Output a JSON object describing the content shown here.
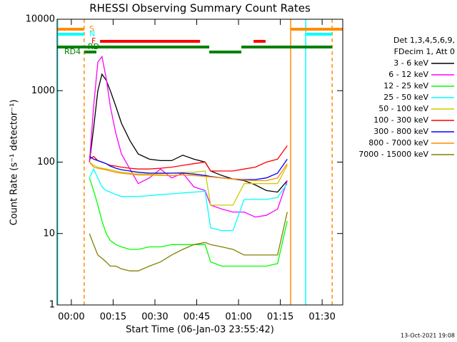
{
  "chart_data": {
    "type": "line",
    "title": "RHESSI Observing Summary Count Rates",
    "xlabel": "Start Time (06-Jan-03 23:55:42)",
    "ylabel": "Count Rate (s⁻¹ detector⁻¹)",
    "ylog": true,
    "xlim": [
      -5.1,
      97.4
    ],
    "ylim": [
      1,
      10000
    ],
    "xticks": [
      {
        "value": 0,
        "label": "00:00"
      },
      {
        "value": 15,
        "label": "00:15"
      },
      {
        "value": 30,
        "label": "00:30"
      },
      {
        "value": 45,
        "label": "00:45"
      },
      {
        "value": 60,
        "label": "01:00"
      },
      {
        "value": 75,
        "label": "01:15"
      },
      {
        "value": 90,
        "label": "01:30"
      }
    ],
    "yticks": [
      1,
      10,
      100,
      1000,
      10000
    ],
    "legend_header": [
      "Det 1,3,4,5,6,9,",
      "FDecim 1, Att 0"
    ],
    "timestamp": "13-Oct-2021 19:08",
    "x": [
      6.5,
      8,
      9.5,
      11,
      12.5,
      14,
      16,
      18,
      21,
      24,
      28,
      32,
      36,
      40,
      44,
      48,
      50,
      54,
      58,
      62,
      66,
      70,
      74,
      77.5
    ],
    "series": [
      {
        "name": "3 - 6 keV",
        "color": "#000000",
        "values": [
          100,
          300,
          1000,
          1700,
          1400,
          1000,
          600,
          350,
          200,
          130,
          110,
          105,
          105,
          125,
          110,
          100,
          75,
          65,
          58,
          55,
          48,
          40,
          38,
          55
        ]
      },
      {
        "name": "6 - 12 keV",
        "color": "#ff00ff",
        "values": [
          100,
          600,
          2500,
          3000,
          1500,
          600,
          250,
          130,
          80,
          50,
          60,
          80,
          60,
          70,
          45,
          40,
          25,
          22,
          20,
          20,
          17,
          18,
          22,
          55
        ]
      },
      {
        "name": "12 - 25 keV",
        "color": "#00ff00",
        "values": [
          60,
          40,
          25,
          15,
          10,
          8,
          7,
          6.5,
          6,
          6,
          6.5,
          6.5,
          7,
          7,
          7,
          7,
          4,
          3.5,
          3.5,
          3.5,
          3.5,
          3.5,
          3.8,
          15
        ]
      },
      {
        "name": "25 - 50 keV",
        "color": "#00ffff",
        "values": [
          60,
          80,
          60,
          45,
          40,
          38,
          35,
          33,
          33,
          33,
          34,
          35,
          36,
          37,
          38,
          39,
          12,
          11,
          11,
          30,
          30,
          30,
          32,
          50
        ]
      },
      {
        "name": "50 - 100 keV",
        "color": "#cccc00",
        "values": [
          100,
          90,
          85,
          82,
          80,
          78,
          75,
          72,
          70,
          68,
          68,
          68,
          70,
          72,
          72,
          75,
          25,
          25,
          25,
          50,
          50,
          50,
          50,
          90
        ]
      },
      {
        "name": "100 - 300 keV",
        "color": "#ff0000",
        "values": [
          110,
          120,
          105,
          100,
          95,
          90,
          88,
          85,
          82,
          80,
          80,
          82,
          85,
          90,
          95,
          100,
          75,
          75,
          75,
          80,
          85,
          100,
          110,
          170
        ]
      },
      {
        "name": "300 - 800 keV",
        "color": "#0000ff",
        "values": [
          120,
          110,
          105,
          100,
          95,
          88,
          82,
          78,
          75,
          72,
          70,
          70,
          70,
          70,
          68,
          65,
          63,
          60,
          58,
          57,
          57,
          60,
          70,
          110
        ]
      },
      {
        "name": "800 - 7000 keV",
        "color": "#ff8c00",
        "values": [
          100,
          85,
          82,
          80,
          78,
          75,
          72,
          70,
          68,
          66,
          66,
          65,
          65,
          66,
          65,
          63,
          62,
          60,
          58,
          56,
          55,
          55,
          60,
          95
        ]
      },
      {
        "name": "7000 - 15000 keV",
        "color": "#808000",
        "values": [
          10,
          7,
          5,
          4.5,
          4,
          3.5,
          3.5,
          3.2,
          3,
          3,
          3.5,
          4,
          5,
          6,
          7,
          7.5,
          7,
          6.5,
          6,
          5,
          5,
          5,
          5,
          20
        ]
      }
    ],
    "flags": [
      {
        "label": "S",
        "color": "#ff8c00",
        "segments": [
          [
            -5.1,
            4.6
          ],
          [
            78.7,
            97.4
          ]
        ]
      },
      {
        "label": "N",
        "color": "#00ffff",
        "segments": [
          [
            -5.1,
            4.6
          ],
          [
            84.1,
            93.6
          ]
        ]
      },
      {
        "label": "F",
        "color": "#ff0000",
        "segments": [
          [
            10.3,
            46.2
          ],
          [
            65.4,
            69.7
          ]
        ]
      },
      {
        "label": "RD",
        "color": "#008000",
        "segments": [
          [
            -5.1,
            49.5
          ],
          [
            61,
            93.6
          ]
        ]
      },
      {
        "label": "RD4",
        "color": "#008000",
        "segments": [
          [
            4.6,
            9
          ],
          [
            49.5,
            61
          ]
        ]
      }
    ],
    "markers": [
      {
        "x": -4.9,
        "color": "#00ffff",
        "dashed": false
      },
      {
        "x": 4.6,
        "color": "#ff8c00",
        "dashed": true
      },
      {
        "x": 78.7,
        "color": "#ff8c00",
        "dashed": false
      },
      {
        "x": 84.1,
        "color": "#00ffff",
        "dashed": false
      },
      {
        "x": 93.6,
        "color": "#ff8c00",
        "dashed": true
      }
    ]
  }
}
